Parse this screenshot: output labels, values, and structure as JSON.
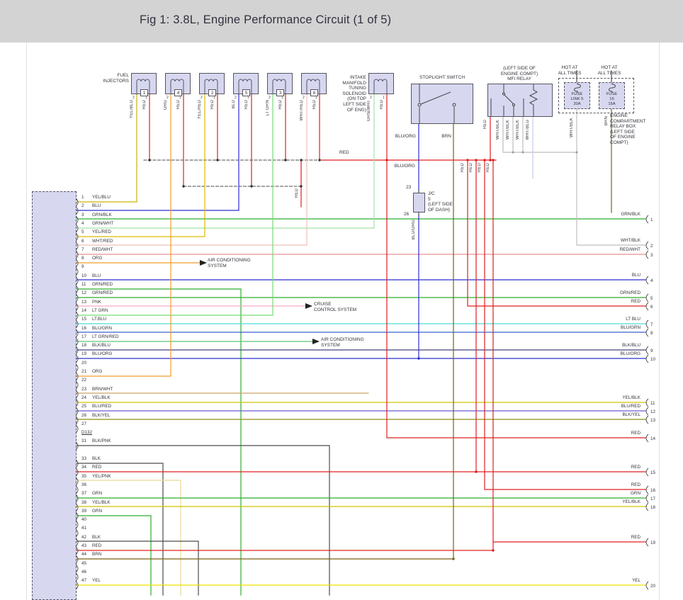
{
  "title": "Fig 1: 3.8L, Engine Performance Circuit (1 of 5)",
  "palette": {
    "red": "#e02020",
    "blue": "#2d2dd2",
    "green": "#2fae2f",
    "lt_green": "#74da74",
    "pale_green": "#a4e2a4",
    "yellow": "#e9e300",
    "dk_yellow": "#c9b500",
    "yel_red": "#ddba00",
    "yel_blk": "#cfc400",
    "orange": "#f29c2c",
    "cyan": "#49dcdc",
    "pink": "#f2aac4",
    "pale_pink": "#eec0bc",
    "salmon": "#e89090",
    "indigo": "#6a5ace",
    "navy": "#45457c",
    "olive": "#8f8f12",
    "tan": "#caa468",
    "pale_yellow": "#e8da96",
    "brown": "#7e5f17",
    "gray": "#bdbdbd",
    "lt_blue_gray": "#c3cce8",
    "black_wire": "#4c4c4c",
    "blu_grn": "#3a62cc",
    "lt_grn_red": "#58c878",
    "box_fill": "#d7d7f0"
  },
  "labels": {
    "fuel_injectors": [
      "FUEL",
      "INJECTORS"
    ],
    "intake_solenoid": [
      "INTAKE",
      "MANIFOLD",
      "TUNING",
      "SOLENOID",
      "(ON TOP",
      "LEFT SIDE",
      "OF ENG)"
    ],
    "stoplight_switch": "STOPLIGHT SWITCH",
    "mfi_relay": [
      "(LEFT SIDE OF",
      "ENGINE COMPT)",
      "MFI RELAY"
    ],
    "hot_at_all_times_1": [
      "HOT AT",
      "ALL TIMES"
    ],
    "hot_at_all_times_2": [
      "HOT AT",
      "ALL TIMES"
    ],
    "fuse_link_5": [
      "FUSE",
      "LINK 5",
      "20A"
    ],
    "fuse_16": [
      "FUSE",
      "16",
      "15A"
    ],
    "relay_box_note": [
      "ENGINE",
      "COMPARTMENT",
      "RELAY BOX",
      "(LEFT SIDE",
      "OF ENGINE",
      "COMPT)"
    ],
    "junction": [
      "J/C",
      "5",
      "(LEFT SIDE",
      "OF DASH)"
    ],
    "jc_pin_top": "23",
    "jc_pin_bottom": "26",
    "ac_system_1": [
      "AIR CONDITIONING",
      "SYSTEM"
    ],
    "cruise_system": [
      "CRUISE",
      "CONTROL SYSTEM"
    ],
    "ac_system_2": [
      "AIR CONDITIONING",
      "SYSTEM"
    ],
    "red_bus": "RED",
    "stoplight_wire_1": "BLU/ORG",
    "stoplight_wire_2": "BRN",
    "stoplight_wire_3": "BLU/ORG"
  },
  "injectors": [
    {
      "num": "1",
      "pin_left": "2",
      "pin_right": "1",
      "wire_left": "YEL/BLU",
      "wire_right": "RED"
    },
    {
      "num": "4",
      "pin_left": "2",
      "pin_right": "1",
      "wire_left": "ORG",
      "wire_right": "RED"
    },
    {
      "num": "2",
      "pin_left": "2",
      "pin_right": "1",
      "wire_left": "YEL/RED",
      "wire_right": "RED"
    },
    {
      "num": "5",
      "pin_left": "2",
      "pin_right": "1",
      "wire_left": "BLU",
      "wire_right": "RED"
    },
    {
      "num": "3",
      "pin_left": "2",
      "pin_right": "1",
      "wire_left": "LT GRN",
      "wire_right": "RED"
    },
    {
      "num": "6",
      "pin_left": "2",
      "pin_right": "1",
      "wire_left": "WHT/RED",
      "wire_right": "RED"
    }
  ],
  "solenoid": {
    "pin_left": "2",
    "pin_right": "1",
    "wire_left": "GRN/WHT",
    "wire_right": "RED"
  },
  "rotated_labels": [
    "YEL/BLU",
    "RED",
    "ORG",
    "RED",
    "YEL/RED",
    "RED",
    "BLU",
    "RED",
    "LT GRN",
    "RED",
    "WHT/RED",
    "RED",
    "GRN/WHT",
    "RED",
    "RED",
    "WHT/BLK",
    "WHT/BLK",
    "WHT/BLK",
    "WHT/BLU",
    "WHT/BLK",
    "BRN",
    "RED",
    "RED",
    "RED",
    "RED",
    "BLU/ORG",
    "RED"
  ],
  "left_connector": {
    "rows": [
      {
        "num": "1",
        "label": "YEL/BLU"
      },
      {
        "num": "2",
        "label": "BLU"
      },
      {
        "num": "3",
        "label": "GRN/BLK"
      },
      {
        "num": "4",
        "label": "GRN/WHT"
      },
      {
        "num": "5",
        "label": "YEL/RED"
      },
      {
        "num": "6",
        "label": "WHT/RED"
      },
      {
        "num": "7",
        "label": "RED/WHT"
      },
      {
        "num": "8",
        "label": "ORG"
      },
      {
        "num": "9",
        "label": ""
      },
      {
        "num": "10",
        "label": "BLU"
      },
      {
        "num": "11",
        "label": "GRN/RED"
      },
      {
        "num": "12",
        "label": "GRN/RED"
      },
      {
        "num": "13",
        "label": "PNK"
      },
      {
        "num": "14",
        "label": "LT GRN"
      },
      {
        "num": "15",
        "label": "LT.BLU"
      },
      {
        "num": "16",
        "label": "BLU/GRN"
      },
      {
        "num": "17",
        "label": "LT GRN/RED"
      },
      {
        "num": "18",
        "label": "BLK/BLU"
      },
      {
        "num": "19",
        "label": "BLU/ORG"
      },
      {
        "num": "20",
        "label": ""
      },
      {
        "num": "21",
        "label": "ORG"
      },
      {
        "num": "22",
        "label": ""
      },
      {
        "num": "23",
        "label": "BRN/WHT"
      },
      {
        "num": "24",
        "label": "YEL/BLK"
      },
      {
        "num": "25",
        "label": "BLU/RED"
      },
      {
        "num": "26",
        "label": "BLK/YEL"
      },
      {
        "num": "27",
        "label": ""
      },
      {
        "num": "D132",
        "label": ""
      },
      {
        "num": "31",
        "label": "BLK/PNK"
      },
      {
        "num": "",
        "label": ""
      },
      {
        "num": "33",
        "label": "BLK"
      },
      {
        "num": "34",
        "label": "RED"
      },
      {
        "num": "35",
        "label": "YEL/PNK"
      },
      {
        "num": "36",
        "label": ""
      },
      {
        "num": "37",
        "label": "GRN"
      },
      {
        "num": "38",
        "label": "YEL/BLK"
      },
      {
        "num": "39",
        "label": "GRN"
      },
      {
        "num": "40",
        "label": ""
      },
      {
        "num": "41",
        "label": ""
      },
      {
        "num": "42",
        "label": "BLK"
      },
      {
        "num": "43",
        "label": "RED"
      },
      {
        "num": "44",
        "label": "BRN"
      },
      {
        "num": "45",
        "label": ""
      },
      {
        "num": "46",
        "label": ""
      },
      {
        "num": "47",
        "label": "YEL"
      }
    ]
  },
  "right_connector": {
    "pins": [
      {
        "num": "1",
        "label": "GRN/BLK"
      },
      {
        "num": "2",
        "label": "WHT/BLK"
      },
      {
        "num": "3",
        "label": "RED/WHT"
      },
      {
        "num": "4",
        "label": "BLU"
      },
      {
        "num": "5",
        "label": "GRN/RED"
      },
      {
        "num": "6",
        "label": "RED"
      },
      {
        "num": "7",
        "label": "LT BLU"
      },
      {
        "num": "8",
        "label": "BLU/GRN"
      },
      {
        "num": "9",
        "label": "BLK/BLU"
      },
      {
        "num": "10",
        "label": "BLU/ORG"
      },
      {
        "num": "11",
        "label": "YEL/BLK"
      },
      {
        "num": "12",
        "label": "BLU/RED"
      },
      {
        "num": "13",
        "label": "BLK/YEL"
      },
      {
        "num": "14",
        "label": "RED"
      },
      {
        "num": "15",
        "label": "RED"
      },
      {
        "num": "16",
        "label": "RED"
      },
      {
        "num": "17",
        "label": "GRN"
      },
      {
        "num": "18",
        "label": "YEL/BLK"
      },
      {
        "num": "19",
        "label": "RED"
      },
      {
        "num": "20",
        "label": "YEL"
      }
    ]
  }
}
